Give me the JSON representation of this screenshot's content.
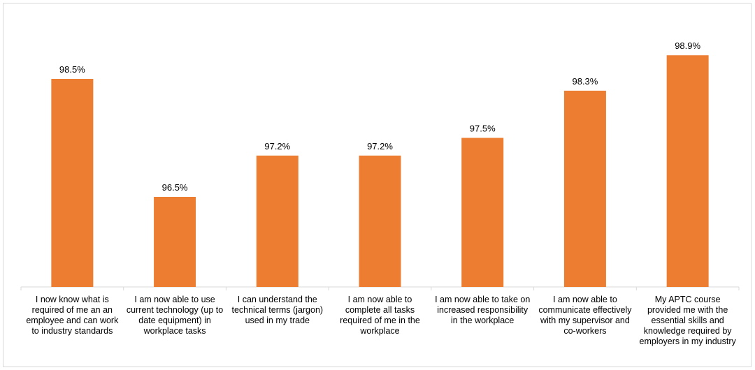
{
  "chart_data": {
    "type": "bar",
    "categories": [
      "I now know what is required of me an an employee and can work to industry standards",
      "I am now able to use current technology (up to date equipment) in workplace tasks",
      "I can understand the technical terms (jargon) used in my trade",
      "I am now able to complete all tasks required of me in the workplace",
      "I am now able to take on increased responsibility in the workplace",
      "I am now able to communicate effectively with my supervisor and co-workers",
      "My APTC course provided me with the essential skills and knowledge required by employers in my industry"
    ],
    "values": [
      98.5,
      96.5,
      97.2,
      97.2,
      97.5,
      98.3,
      98.9
    ],
    "data_labels": [
      "98.5%",
      "96.5%",
      "97.2%",
      "97.2%",
      "97.5%",
      "98.3%",
      "98.9%"
    ],
    "title": "",
    "xlabel": "",
    "ylabel": "",
    "ylim": [
      95.0,
      99.5
    ],
    "grid": false,
    "legend": "none",
    "bar_color": "#ED7D31"
  }
}
